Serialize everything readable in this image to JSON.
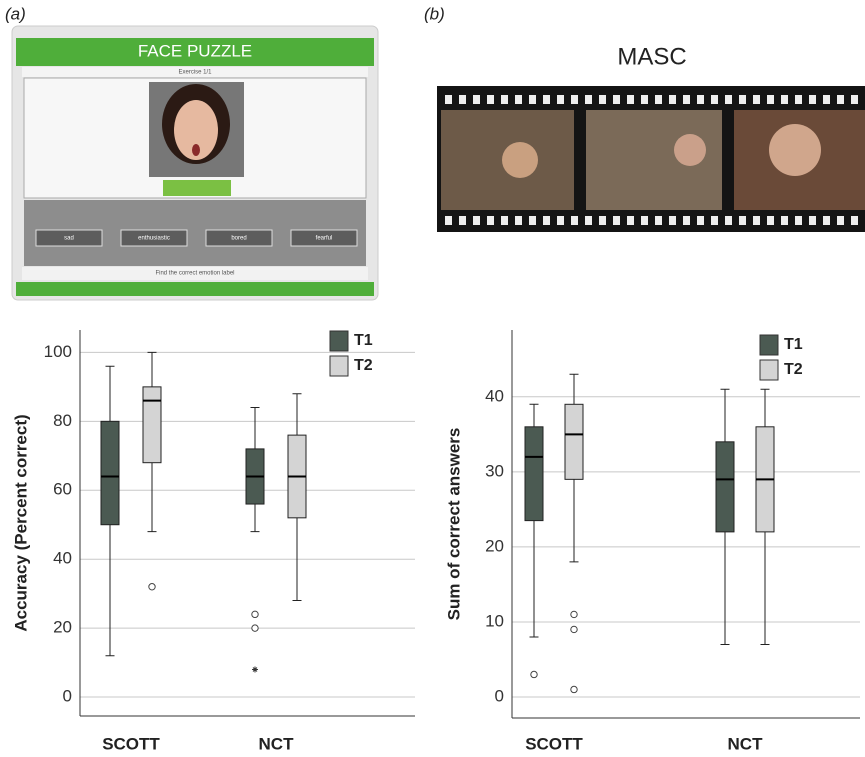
{
  "panels": {
    "a": {
      "label": "(a)",
      "app": {
        "title": "FACE PUZZLE",
        "exercise": "Exercise 1/1",
        "options": [
          "sad",
          "enthusiastic",
          "bored",
          "fearful"
        ],
        "instruction": "Find the correct emotion label"
      }
    },
    "b": {
      "label": "(b)",
      "title": "MASC"
    }
  },
  "chart_data": [
    {
      "type": "box",
      "ylabel": "Accuracy (Percent correct)",
      "categories": [
        "SCOTT",
        "NCT"
      ],
      "ylim": [
        -5.5,
        106.5
      ],
      "yticks": [
        0,
        20,
        40,
        60,
        80,
        100
      ],
      "grid": true,
      "legend": "top-right",
      "series": [
        {
          "name": "T1",
          "color": "#4b5a52",
          "boxes": [
            {
              "whisker_low": 12,
              "q1": 50,
              "median": 64,
              "q3": 80,
              "whisker_high": 96,
              "outliers": [],
              "extremes": []
            },
            {
              "whisker_low": 48,
              "q1": 56,
              "median": 64,
              "q3": 72,
              "whisker_high": 84,
              "outliers": [
                24,
                20
              ],
              "extremes": [
                8
              ]
            }
          ]
        },
        {
          "name": "T2",
          "color": "#d4d4d4",
          "boxes": [
            {
              "whisker_low": 48,
              "q1": 68,
              "median": 86,
              "q3": 90,
              "whisker_high": 100,
              "outliers": [
                32
              ],
              "extremes": []
            },
            {
              "whisker_low": 28,
              "q1": 52,
              "median": 64,
              "q3": 76,
              "whisker_high": 88,
              "outliers": [],
              "extremes": []
            }
          ]
        }
      ]
    },
    {
      "type": "box",
      "ylabel": "Sum of correct answers",
      "categories": [
        "SCOTT",
        "NCT"
      ],
      "ylim": [
        -2.8,
        48.9
      ],
      "yticks": [
        0,
        10,
        20,
        30,
        40
      ],
      "grid": true,
      "legend": "top-right",
      "series": [
        {
          "name": "T1",
          "color": "#4b5a52",
          "boxes": [
            {
              "whisker_low": 8,
              "q1": 23.5,
              "median": 32,
              "q3": 36,
              "whisker_high": 39,
              "outliers": [
                3
              ],
              "extremes": []
            },
            {
              "whisker_low": 7,
              "q1": 22,
              "median": 29,
              "q3": 34,
              "whisker_high": 41,
              "outliers": [],
              "extremes": []
            }
          ]
        },
        {
          "name": "T2",
          "color": "#d4d4d4",
          "boxes": [
            {
              "whisker_low": 18,
              "q1": 29,
              "median": 35,
              "q3": 39,
              "whisker_high": 43,
              "outliers": [
                11,
                9,
                1
              ],
              "extremes": []
            },
            {
              "whisker_low": 7,
              "q1": 22,
              "median": 29,
              "q3": 36,
              "whisker_high": 41,
              "outliers": [],
              "extremes": []
            }
          ]
        }
      ]
    }
  ]
}
